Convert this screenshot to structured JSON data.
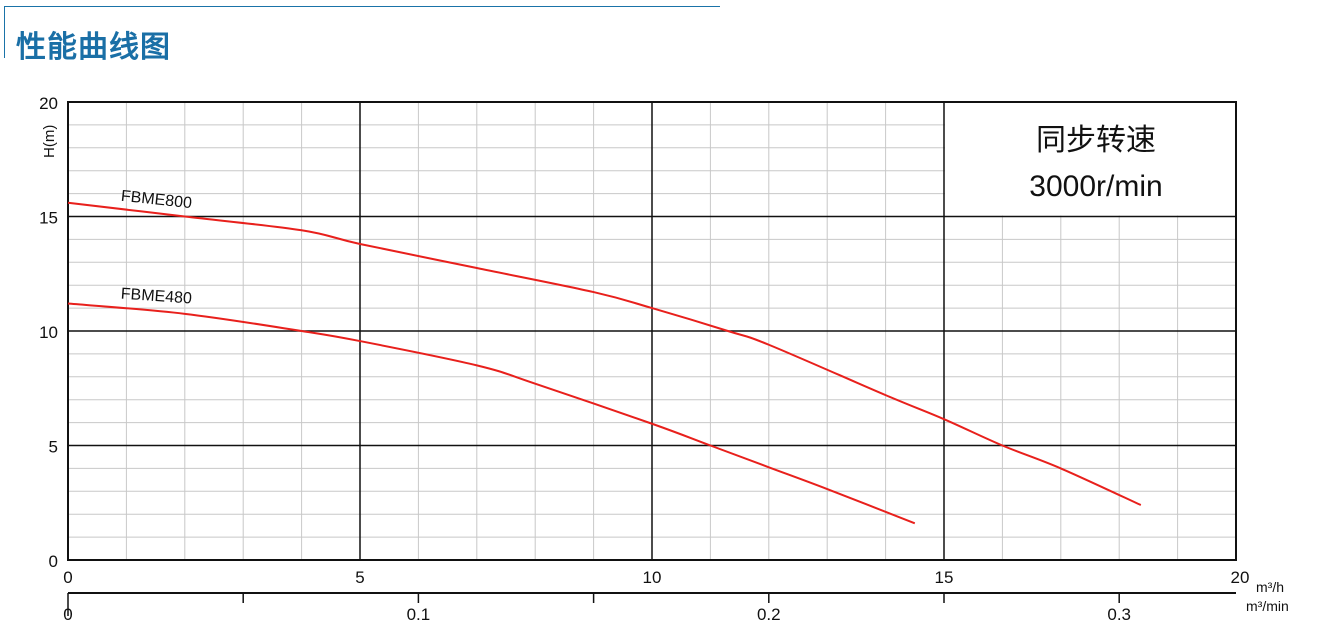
{
  "header": {
    "title": "性能曲线图",
    "accent_color": "#1a6fa6"
  },
  "chart_data": {
    "type": "line",
    "title": "",
    "ylabel": "H(m)",
    "xlabel": "m³/h",
    "x2label": "m³/min",
    "xlim": [
      0,
      20
    ],
    "ylim": [
      0,
      20
    ],
    "x_ticks": [
      0,
      5,
      10,
      15,
      20
    ],
    "y_ticks": [
      0,
      5,
      10,
      15,
      20
    ],
    "x2_ticks": [
      0,
      0.1,
      0.2,
      0.3
    ],
    "x2_tick_labels": [
      "0",
      "0.1",
      "0.2",
      "0.3"
    ],
    "grid": true,
    "annotation": {
      "line1": "同步转速",
      "line2": "3000r/min"
    },
    "series": [
      {
        "name": "FBME800",
        "color": "#e8201c",
        "x": [
          0,
          2,
          4,
          5,
          7,
          9,
          10,
          11.3,
          12,
          14,
          15,
          16,
          17,
          18.37
        ],
        "y": [
          15.6,
          15.0,
          14.4,
          13.8,
          12.75,
          11.7,
          11.0,
          10.0,
          9.4,
          7.2,
          6.15,
          5.0,
          4.0,
          2.4
        ]
      },
      {
        "name": "FBME480",
        "color": "#e8201c",
        "x": [
          0,
          2,
          4,
          5,
          7,
          8,
          10,
          11,
          12,
          13,
          14.5
        ],
        "y": [
          11.2,
          10.75,
          10.0,
          9.56,
          8.5,
          7.7,
          5.95,
          5.0,
          4.05,
          3.1,
          1.6
        ]
      }
    ]
  }
}
